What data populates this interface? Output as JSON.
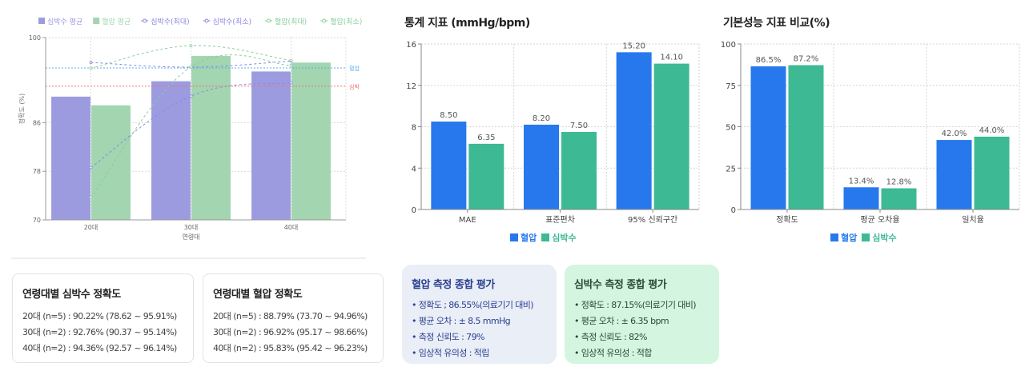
{
  "chart_data": [
    {
      "type": "bar",
      "title": "",
      "xlabel": "연령대",
      "ylabel": "정확도 (%)",
      "categories": [
        "20대",
        "30대",
        "40대"
      ],
      "yticks": [
        70,
        78,
        86,
        100
      ],
      "ylim": [
        70,
        100
      ],
      "grid": true,
      "legend_position": "top",
      "series": [
        {
          "name": "심박수 평균",
          "kind": "bar",
          "color": "#9d9be0",
          "values": [
            90.22,
            92.76,
            94.36
          ]
        },
        {
          "name": "혈압 평균",
          "kind": "bar",
          "color": "#a2d5b0",
          "values": [
            88.79,
            96.92,
            95.83
          ]
        },
        {
          "name": "심박수(최대)",
          "kind": "line",
          "color": "#8c87e0",
          "values": [
            95.91,
            95.14,
            96.14
          ]
        },
        {
          "name": "심박수(최소)",
          "kind": "line",
          "color": "#8c87e0",
          "values": [
            78.62,
            90.37,
            92.57
          ]
        },
        {
          "name": "혈압(최대)",
          "kind": "line",
          "color": "#86cf9a",
          "values": [
            94.96,
            98.66,
            96.23
          ]
        },
        {
          "name": "혈압(최소)",
          "kind": "line",
          "color": "#86cf9a",
          "values": [
            73.7,
            95.17,
            95.42
          ]
        }
      ],
      "reference_lines": [
        {
          "label": "혈압",
          "value": 95,
          "color": "#5aaef5"
        },
        {
          "label": "심박",
          "value": 92,
          "color": "#f07070"
        }
      ]
    },
    {
      "type": "bar",
      "title": "통계 지표 (mmHg/bpm)",
      "xlabel": "",
      "ylabel": "",
      "categories": [
        "MAE",
        "표준편차",
        "95% 신뢰구간"
      ],
      "yticks": [
        0,
        4,
        8,
        12,
        16
      ],
      "ylim": [
        0,
        16
      ],
      "grid": true,
      "legend_position": "bottom",
      "series": [
        {
          "name": "혈압",
          "color": "#2878ed",
          "values": [
            8.5,
            8.2,
            15.2
          ],
          "labels": [
            "8.50",
            "8.20",
            "15.20"
          ]
        },
        {
          "name": "심박수",
          "color": "#3db994",
          "values": [
            6.35,
            7.5,
            14.1
          ],
          "labels": [
            "6.35",
            "7.50",
            "14.10"
          ]
        }
      ]
    },
    {
      "type": "bar",
      "title": "기본성능 지표 비교(%)",
      "xlabel": "",
      "ylabel": "",
      "categories": [
        "정확도",
        "평균 오차율",
        "일치율"
      ],
      "yticks": [
        0,
        25,
        50,
        75,
        100
      ],
      "ylim": [
        0,
        100
      ],
      "grid": true,
      "legend_position": "bottom",
      "series": [
        {
          "name": "혈압",
          "color": "#2878ed",
          "values": [
            86.5,
            13.4,
            42.0
          ],
          "labels": [
            "86.5%",
            "13.4%",
            "42.0%"
          ]
        },
        {
          "name": "심박수",
          "color": "#3db994",
          "values": [
            87.2,
            12.8,
            44.0
          ],
          "labels": [
            "87.2%",
            "12.8%",
            "44.0%"
          ]
        }
      ]
    }
  ],
  "age_cards": [
    {
      "title": "연령대별 심박수 정확도",
      "lines": [
        "20대 (n=5) : 90.22% (78.62 ~ 95.91%)",
        "30대 (n=2) : 92.76% (90.37 ~ 95.14%)",
        "40대 (n=2) : 94.36% (92.57 ~ 96.14%)"
      ]
    },
    {
      "title": "연령대별 혈압 정확도",
      "lines": [
        "20대 (n=5) : 88.79% (73.70 ~ 94.96%)",
        "30대 (n=2) : 96.92% (95.17 ~ 98.66%)",
        "40대 (n=2) : 95.83% (95.42 ~ 96.23%)"
      ]
    }
  ],
  "evaluations": [
    {
      "title": "혈압 측정 종합 평가",
      "items": [
        "• 정확도  ; 86.55%(의료기기 대비)",
        "• 평균 오차 : ± 8.5 mmHg",
        "• 측정 신뢰도 : 79%",
        "• 임상적 유의성 : 적립"
      ]
    },
    {
      "title": "심박수 측정 종합 평가",
      "items": [
        "• 정확도 : 87.15%(의료기기 대비)",
        "• 평균 오차 : ± 6.35 bpm",
        "• 측정 신뢰도 : 82%",
        "• 임상적 유의성 : 적합"
      ]
    }
  ]
}
